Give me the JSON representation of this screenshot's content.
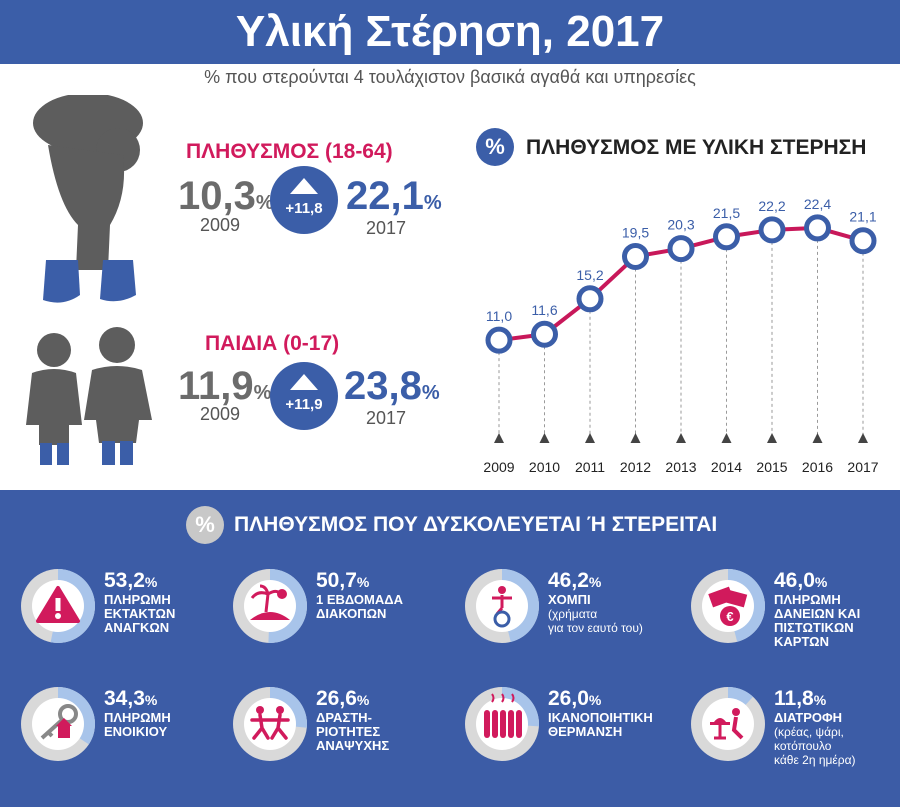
{
  "title": "Υλική Στέρηση, 2017",
  "subtitle": "% που στερούνται 4 τουλάχιστον βασικά αγαθά και υπηρεσίες",
  "population": {
    "label": "ΠΛΗΘΥΣΜΟΣ (18-64)",
    "value_2009": "10,3",
    "year_2009": "2009",
    "change": "+11,8",
    "value_2017": "22,1",
    "year_2017": "2017",
    "pct": "%"
  },
  "children": {
    "label": "ΠΑΙΔΙΑ (0-17)",
    "value_2009": "11,9",
    "year_2009": "2009",
    "change": "+11,9",
    "value_2017": "23,8",
    "year_2017": "2017",
    "pct": "%"
  },
  "chart_section": {
    "badge": "%",
    "title": "ΠΛΗΘΥΣΜΟΣ ΜΕ ΥΛΙΚΗ ΣΤΕΡΗΣΗ"
  },
  "chart_data": {
    "type": "line",
    "title": "ΠΛΗΘΥΣΜΟΣ ΜΕ ΥΛΙΚΗ ΣΤΕΡΗΣΗ",
    "categories": [
      "2009",
      "2010",
      "2011",
      "2012",
      "2013",
      "2014",
      "2015",
      "2016",
      "2017"
    ],
    "values": [
      11.0,
      11.6,
      15.2,
      19.5,
      20.3,
      21.5,
      22.2,
      22.4,
      21.1
    ],
    "value_labels": [
      "11,0",
      "11,6",
      "15,2",
      "19,5",
      "20,3",
      "21,5",
      "22,2",
      "22,4",
      "21,1"
    ],
    "line_color": "#c8185a",
    "marker_color": "#3b5ea8"
  },
  "bottom_section": {
    "badge": "%",
    "title": "ΠΛΗΘΥΣΜΟΣ ΠΟΥ ΔΥΣΚΟΛΕΥΕΤΑΙ Ή ΣΤΕΡΕΙΤΑΙ",
    "items": [
      {
        "value": "53,2",
        "pct": "%",
        "lines": [
          "ΠΛΗΡΩΜΗ",
          "ΕΚΤΑΚΤΩΝ",
          "ΑΝΑΓΚΩΝ"
        ],
        "sub": [],
        "share": 0.532,
        "icon": "warning-icon"
      },
      {
        "value": "50,7",
        "pct": "%",
        "lines": [
          "1 ΕΒΔΟΜΑΔΑ",
          "ΔΙΑΚΟΠΩΝ"
        ],
        "sub": [],
        "share": 0.507,
        "icon": "island-icon"
      },
      {
        "value": "46,2",
        "pct": "%",
        "lines": [
          "ΧΟΜΠΙ"
        ],
        "sub": [
          "(χρήματα",
          "για τον εαυτό του)"
        ],
        "share": 0.462,
        "icon": "unicycle-icon"
      },
      {
        "value": "46,0",
        "pct": "%",
        "lines": [
          "ΠΛΗΡΩΜΗ",
          "ΔΑΝΕΙΩΝ ΚΑΙ",
          "ΠΙΣΤΩΤΙΚΩΝ",
          "ΚΑΡΤΩΝ"
        ],
        "sub": [],
        "share": 0.46,
        "icon": "cards-icon"
      },
      {
        "value": "34,3",
        "pct": "%",
        "lines": [
          "ΠΛΗΡΩΜΗ",
          "ΕΝΟΙΚΙΟΥ"
        ],
        "sub": [],
        "share": 0.343,
        "icon": "house-key-icon"
      },
      {
        "value": "26,6",
        "pct": "%",
        "lines": [
          "ΔΡΑΣΤΗ-",
          "ΡΙΟΤΗΤΕΣ",
          "ΑΝΑΨΥΧΗΣ"
        ],
        "sub": [],
        "share": 0.266,
        "icon": "dancing-icon"
      },
      {
        "value": "26,0",
        "pct": "%",
        "lines": [
          "ΙΚΑΝΟΠΟΙΗΤΙΚΗ",
          "ΘΕΡΜΑΝΣΗ"
        ],
        "sub": [],
        "share": 0.26,
        "icon": "radiator-icon"
      },
      {
        "value": "11,8",
        "pct": "%",
        "lines": [
          "ΔΙΑΤΡΟΦΗ"
        ],
        "sub": [
          "(κρέας, ψάρι,",
          "κοτόπουλο",
          "κάθε 2η ημέρα)"
        ],
        "share": 0.118,
        "icon": "dining-icon"
      }
    ]
  },
  "colors": {
    "blue": "#3b5ea8",
    "magenta": "#d11a5c",
    "gray": "#6b6b6b",
    "pie_light": "#a8c4ea",
    "pie_bg": "#d9d9d9"
  }
}
